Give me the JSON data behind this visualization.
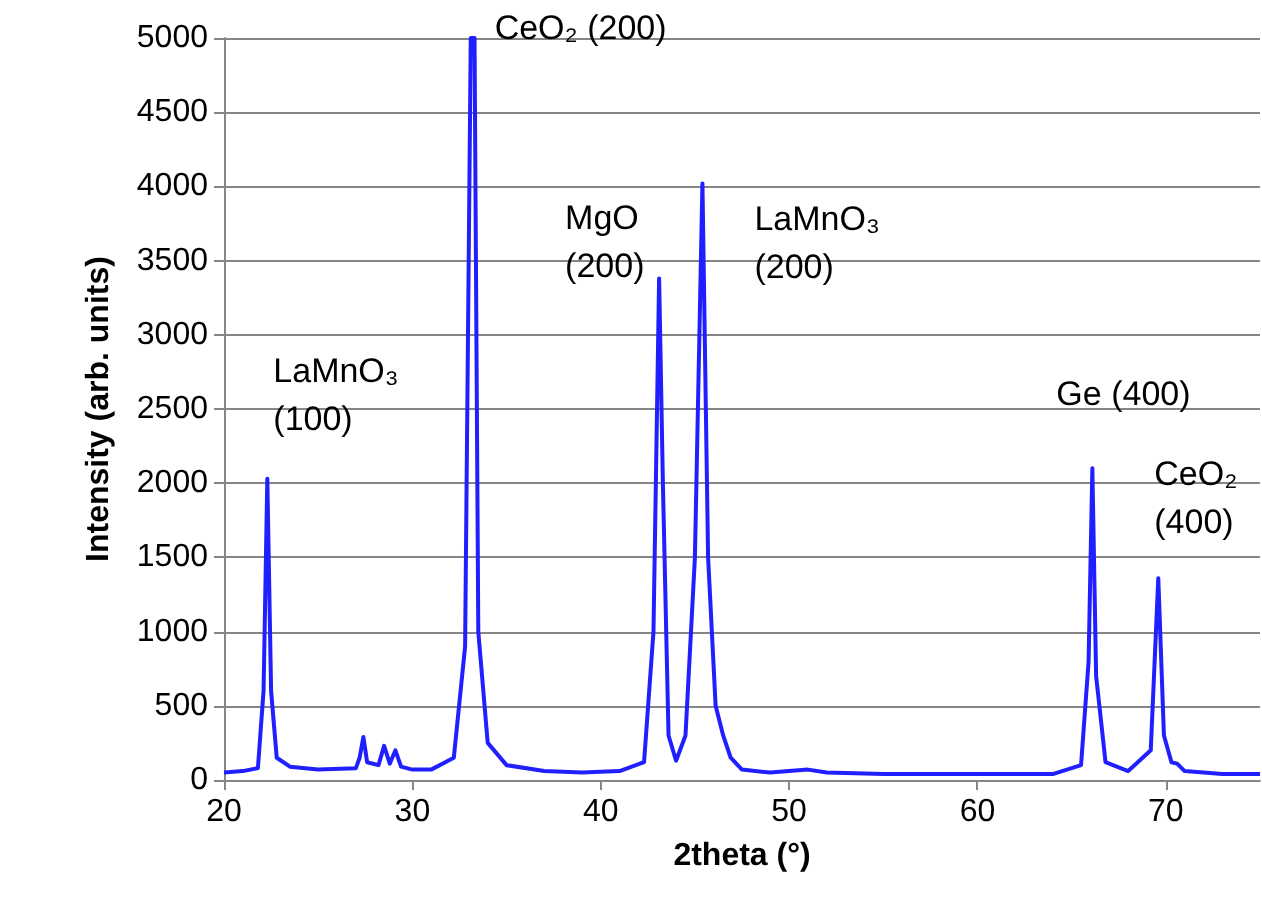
{
  "chart_data": {
    "type": "line",
    "xlabel": "2theta (°)",
    "ylabel": "Intensity (arb. units)",
    "xlim": [
      20,
      75
    ],
    "xticks": [
      20,
      30,
      40,
      50,
      60,
      70
    ],
    "ylim": [
      0,
      5000
    ],
    "yticks": [
      0,
      500,
      1000,
      1500,
      2000,
      2500,
      3000,
      3500,
      4000,
      4500,
      5000
    ],
    "grid": "y",
    "marker": "none",
    "line_style": "solid",
    "series": [
      {
        "color": "#1f1fff",
        "x": [
          20,
          21,
          21.8,
          22.1,
          22.3,
          22.5,
          22.8,
          23.5,
          25,
          27,
          27.2,
          27.4,
          27.6,
          28.2,
          28.5,
          28.8,
          29.1,
          29.4,
          30,
          31,
          32.2,
          32.8,
          33.1,
          33.3,
          33.5,
          34,
          35,
          37,
          39,
          41,
          42.3,
          42.8,
          43.1,
          43.3,
          43.6,
          44,
          44.5,
          45,
          45.4,
          45.7,
          46.1,
          46.5,
          46.9,
          47.5,
          49,
          51,
          52,
          55,
          60,
          64,
          65.5,
          65.9,
          66.1,
          66.3,
          66.8,
          68,
          69.2,
          69.6,
          69.9,
          70.3,
          70.6,
          71,
          73,
          75
        ],
        "values": [
          50,
          60,
          80,
          600,
          2030,
          600,
          150,
          90,
          70,
          80,
          150,
          290,
          120,
          100,
          230,
          110,
          200,
          90,
          70,
          70,
          150,
          900,
          5000,
          5000,
          1000,
          250,
          100,
          60,
          50,
          60,
          120,
          1000,
          3380,
          2000,
          300,
          130,
          300,
          1500,
          4020,
          1500,
          500,
          300,
          150,
          70,
          50,
          70,
          50,
          40,
          40,
          40,
          100,
          800,
          2100,
          700,
          120,
          60,
          200,
          1360,
          300,
          120,
          110,
          60,
          40,
          40
        ]
      }
    ],
    "annotations": [
      {
        "text": "LaMnO₃ (100)",
        "x": 22.3,
        "y": 2030
      },
      {
        "text": "CeO₂ (200)",
        "x": 33.2,
        "y": 5000
      },
      {
        "text": "MgO (200)",
        "x": 43.1,
        "y": 3380
      },
      {
        "text": "LaMnO₃ (200)",
        "x": 45.4,
        "y": 4020
      },
      {
        "text": "Ge (400)",
        "x": 66.1,
        "y": 2100
      },
      {
        "text": "CeO₂ (400)",
        "x": 69.6,
        "y": 1360
      }
    ]
  }
}
